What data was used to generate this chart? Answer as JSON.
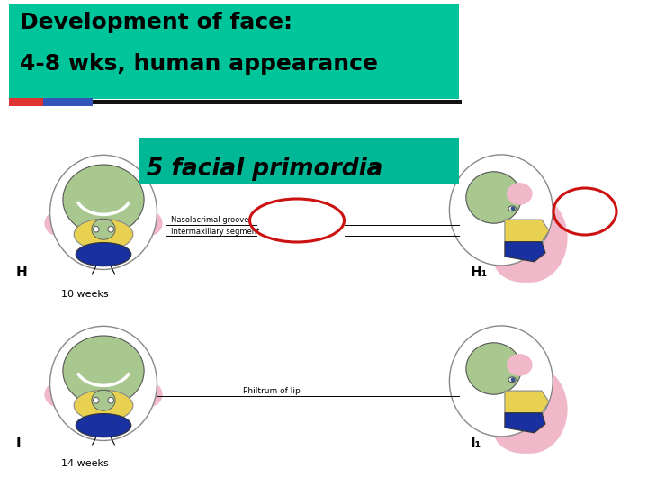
{
  "title_line1": "Development of face:",
  "title_line2": "4-8 wks, human appearance",
  "subtitle": "5 facial primordia",
  "title_bg_color": "#00c49a",
  "subtitle_bg_color": "#00b896",
  "title_text_color": "#000000",
  "subtitle_text_color": "#000000",
  "bg_color": "#ffffff",
  "label_h": "H",
  "label_h1": "H₁",
  "label_i": "I",
  "label_i1": "I₁",
  "label_10wks": "10 weeks",
  "label_14wks": "14 weeks",
  "label_nasolacrimal": "Nasolacrimal groove",
  "label_intermaxillary": "Intermaxillary segment",
  "label_philtrum": "Philtrum of lip",
  "figure_width": 7.2,
  "figure_height": 5.4,
  "dpi": 100
}
